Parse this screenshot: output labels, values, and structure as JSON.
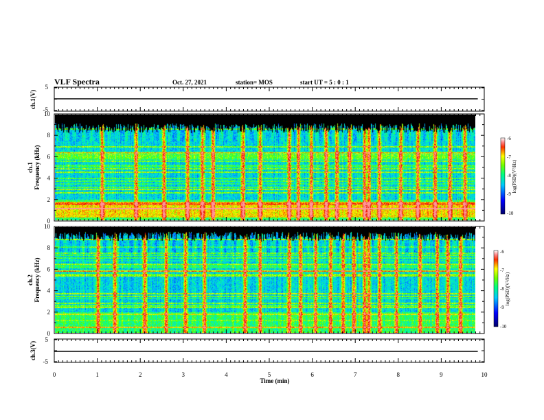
{
  "header": {
    "title": "VLF Spectra",
    "date": "Oct. 27, 2021",
    "station": "station= MOS",
    "start_ut": "start  UT  =   5 : 0  : 1"
  },
  "chart_data": [
    {
      "type": "line",
      "panel": "ch1-waveform",
      "ylabel": "ch.1(V)",
      "ylim": [
        -5,
        5
      ],
      "yticks": [
        "5",
        "-5"
      ],
      "xlim": [
        0,
        10
      ],
      "series": [
        {
          "x": [
            0,
            9.85
          ],
          "y": [
            0,
            0
          ]
        }
      ]
    },
    {
      "type": "heatmap",
      "panel": "ch1-spectrogram",
      "ylabel_top": "ch.1",
      "ylabel": "Frequency  (kHz)",
      "ylim": [
        0,
        10
      ],
      "yticks": [
        "0",
        "2",
        "4",
        "6",
        "8",
        "10"
      ],
      "xlim": [
        0,
        10
      ],
      "colorbar": {
        "label": "log(PSD)(V²/Hz)",
        "range": [
          -10,
          -6
        ],
        "ticks": [
          "-6",
          "-7",
          "-8",
          "-9",
          "-10"
        ]
      },
      "bursts_min": [
        1.1,
        1.9,
        2.55,
        3.1,
        3.45,
        3.7,
        4.4,
        4.8,
        5.48,
        5.7,
        6.0,
        6.35,
        6.6,
        6.9,
        7.25,
        7.35,
        7.6,
        8.1,
        8.5,
        8.9,
        9.25,
        9.6
      ]
    },
    {
      "type": "heatmap",
      "panel": "ch2-spectrogram",
      "ylabel_top": "ch.2",
      "ylabel": "Frequency  (kHz)",
      "ylim": [
        0,
        10
      ],
      "yticks": [
        "0",
        "2",
        "4",
        "6",
        "8",
        "10"
      ],
      "xlim": [
        0,
        10
      ],
      "colorbar": {
        "label": "log(PSD)(V²/Hz)",
        "range": [
          -10,
          -6
        ],
        "ticks": [
          "-6",
          "-7",
          "-8",
          "-9",
          "-10"
        ]
      },
      "bursts_min": [
        1.0,
        1.4,
        2.1,
        2.6,
        3.05,
        3.5,
        4.45,
        4.8,
        5.48,
        5.75,
        6.1,
        6.45,
        6.75,
        7.0,
        7.25,
        7.35,
        7.6,
        8.0,
        8.55,
        8.95,
        9.2,
        9.5
      ]
    },
    {
      "type": "line",
      "panel": "ch3-waveform",
      "ylabel": "ch.3(V)",
      "ylim": [
        -5,
        5
      ],
      "yticks": [
        "5",
        "-5"
      ],
      "xlim": [
        0,
        10
      ],
      "xlabel": "Time  (min)",
      "xticks": [
        "0",
        "1",
        "2",
        "3",
        "4",
        "5",
        "6",
        "7",
        "8",
        "9",
        "10"
      ],
      "series": [
        {
          "x": [
            0,
            9.85
          ],
          "y": [
            0,
            0
          ]
        }
      ]
    }
  ],
  "colors": {
    "background": "#000000",
    "noise_floor": "#0000d0",
    "colormap": [
      "#000060",
      "#0000c8",
      "#0050ff",
      "#00c8ff",
      "#00ffa0",
      "#60ff00",
      "#ffff00",
      "#ff8000",
      "#e00000",
      "#ffffff"
    ]
  }
}
